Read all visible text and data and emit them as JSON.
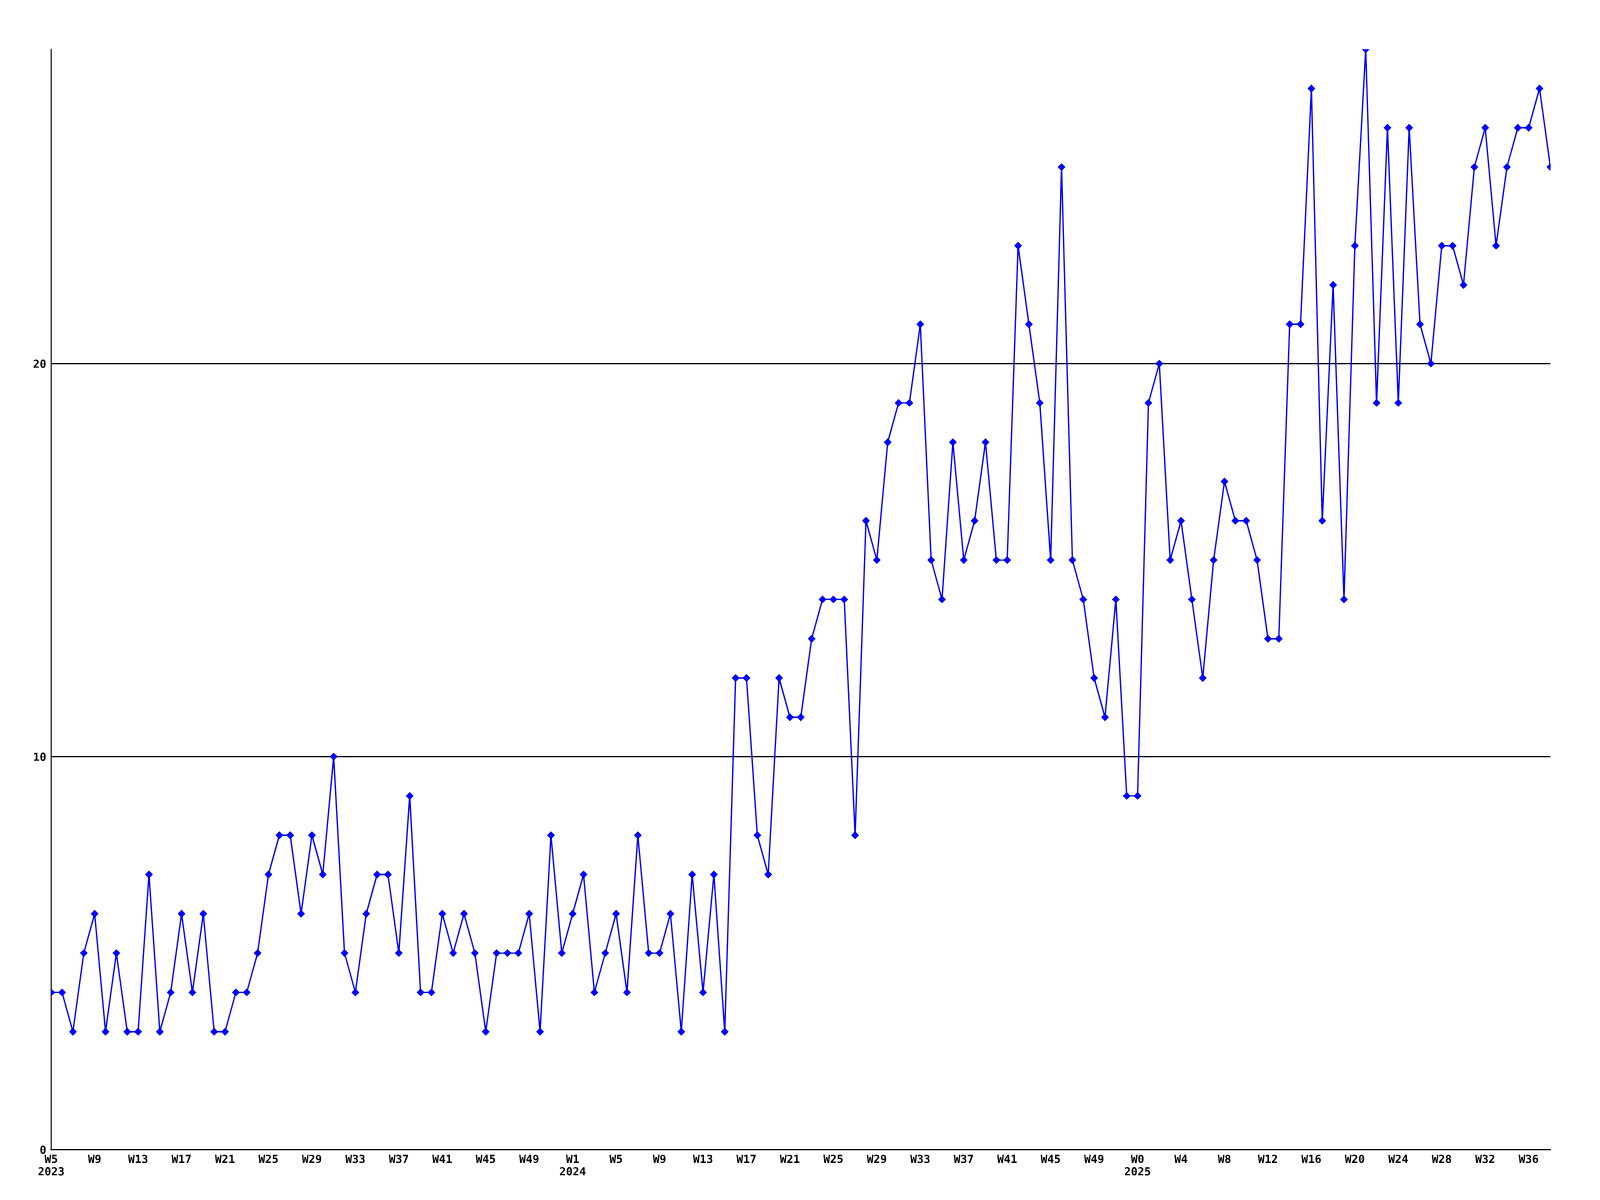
{
  "chart_data": {
    "type": "line",
    "categories": [
      "W5\n2023",
      null,
      null,
      null,
      "W9",
      null,
      null,
      null,
      "W13",
      null,
      null,
      null,
      "W17",
      null,
      null,
      null,
      "W21",
      null,
      null,
      null,
      "W25",
      null,
      null,
      null,
      "W29",
      null,
      null,
      null,
      "W33",
      null,
      null,
      null,
      "W37",
      null,
      null,
      null,
      "W41",
      null,
      null,
      null,
      "W45",
      null,
      null,
      null,
      "W49",
      null,
      null,
      null,
      "W1\n2024",
      null,
      null,
      null,
      "W5",
      null,
      null,
      null,
      "W9",
      null,
      null,
      null,
      "W13",
      null,
      null,
      null,
      "W17",
      null,
      null,
      null,
      "W21",
      null,
      null,
      null,
      "W25",
      null,
      null,
      null,
      "W29",
      null,
      null,
      null,
      "W33",
      null,
      null,
      null,
      "W37",
      null,
      null,
      null,
      "W41",
      null,
      null,
      null,
      "W45",
      null,
      null,
      null,
      "W49",
      null,
      null,
      null,
      "W0\n2025",
      null,
      null,
      null,
      "W4",
      null,
      null,
      null,
      "W8",
      null,
      null,
      null,
      "W12",
      null,
      null,
      null,
      "W16",
      null,
      null,
      null,
      "W20",
      null,
      null,
      null,
      "W24",
      null,
      null,
      null,
      "W28",
      null,
      null,
      null,
      "W32",
      null,
      null,
      null,
      "W36",
      null,
      null
    ],
    "series": [
      {
        "color": "#0000ff",
        "values": [
          4,
          4,
          3,
          5,
          6,
          3,
          5,
          3,
          3,
          7,
          3,
          4,
          6,
          4,
          6,
          3,
          3,
          4,
          4,
          5,
          7,
          8,
          8,
          6,
          8,
          7,
          10,
          5,
          4,
          6,
          7,
          7,
          5,
          9,
          4,
          4,
          6,
          5,
          6,
          5,
          3,
          5,
          5,
          5,
          6,
          3,
          8,
          5,
          6,
          7,
          4,
          5,
          6,
          4,
          8,
          5,
          5,
          6,
          3,
          7,
          4,
          7,
          3,
          12,
          12,
          8,
          7,
          12,
          11,
          11,
          13,
          14,
          14,
          14,
          8,
          16,
          15,
          18,
          19,
          19,
          21,
          15,
          14,
          18,
          15,
          16,
          18,
          15,
          15,
          23,
          21,
          19,
          15,
          25,
          15,
          14,
          12,
          11,
          14,
          9,
          9,
          19,
          20,
          15,
          16,
          14,
          12,
          15,
          17,
          16,
          16,
          15,
          13,
          13,
          21,
          21,
          27,
          16,
          22,
          14,
          23,
          28,
          19,
          26,
          19,
          26,
          21,
          20,
          23,
          23,
          22,
          25,
          26,
          23,
          25,
          26,
          26,
          27,
          25
        ]
      }
    ],
    "ylim": [
      0,
      28
    ],
    "yticks": [
      0,
      10,
      20
    ],
    "grid": "y",
    "marker": "diamond",
    "line_style": "solid"
  }
}
